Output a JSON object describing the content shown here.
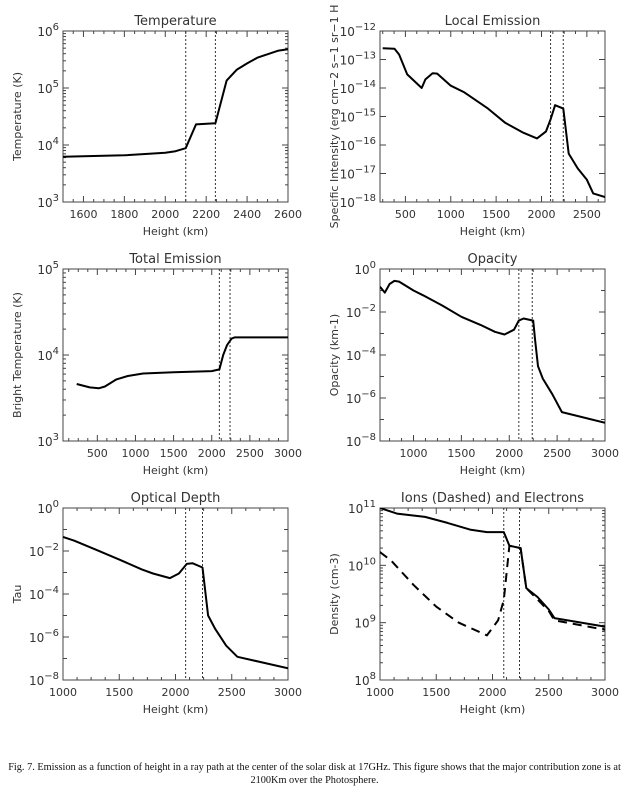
{
  "chart_data": [
    {
      "type": "line",
      "title": "Temperature",
      "xlabel": "Height (km)",
      "ylabel": "Temperature (K)",
      "xlim": [
        1500,
        2600
      ],
      "ylim": [
        1000.0,
        1000000.0
      ],
      "yscale": "log",
      "xticks": [
        1600,
        1800,
        2000,
        2200,
        2400,
        2600
      ],
      "yticks_exponents": [
        3,
        4,
        5,
        6
      ],
      "vertical_dotted_lines": [
        2100,
        2245
      ],
      "series": [
        {
          "style": "solid",
          "x": [
            1500,
            1800,
            2000,
            2050,
            2100,
            2150,
            2245,
            2300,
            2350,
            2400,
            2450,
            2550,
            2600
          ],
          "y": [
            6200.0,
            6600.0,
            7300.0,
            7800.0,
            8800.0,
            23000.0,
            24000.0,
            135000.0,
            210000.0,
            270000.0,
            340000.0,
            450000.0,
            480000.0
          ]
        }
      ]
    },
    {
      "type": "line",
      "title": "Local Emission",
      "xlabel": "Height (km)",
      "ylabel": "Specific Intensity (erg cm−2 s−1 sr−1 H",
      "xlim": [
        220,
        2700
      ],
      "ylim": [
        1e-18,
        1e-12
      ],
      "yscale": "log",
      "xticks": [
        500,
        1000,
        1500,
        2000,
        2500
      ],
      "yticks_exponents": [
        -18,
        -17,
        -16,
        -15,
        -14,
        -13,
        -12
      ],
      "vertical_dotted_lines": [
        2100,
        2240
      ],
      "series": [
        {
          "style": "solid",
          "x": [
            250,
            380,
            430,
            520,
            680,
            720,
            800,
            850,
            1000,
            1150,
            1400,
            1600,
            1800,
            1950,
            2050,
            2100,
            2150,
            2240,
            2300,
            2400,
            2500,
            2570,
            2700
          ],
          "y": [
            2.5e-13,
            2.4e-13,
            1.5e-13,
            3e-14,
            1e-14,
            2e-14,
            3.3e-14,
            3.2e-14,
            1.2e-14,
            7e-15,
            2e-15,
            6e-16,
            2.7e-16,
            1.7e-16,
            3e-16,
            8e-16,
            2.5e-15,
            1.9e-15,
            5e-17,
            1.5e-17,
            6e-18,
            2e-18,
            1.5e-18
          ]
        }
      ]
    },
    {
      "type": "line",
      "title": "Total Emission",
      "xlabel": "Height (km)",
      "ylabel": "Bright Temperature (K)",
      "xlim": [
        50,
        3000
      ],
      "ylim": [
        1000.0,
        100000.0
      ],
      "yscale": "log",
      "xticks": [
        500,
        1000,
        1500,
        2000,
        2500,
        3000
      ],
      "yticks_exponents": [
        3,
        4,
        5
      ],
      "vertical_dotted_lines": [
        2100,
        2240
      ],
      "series": [
        {
          "style": "solid",
          "x": [
            230,
            400,
            520,
            600,
            750,
            900,
            1100,
            1500,
            2000,
            2100,
            2150,
            2200,
            2260,
            2300,
            3000
          ],
          "y": [
            4600.0,
            4200.0,
            4100.0,
            4300.0,
            5200.0,
            5700.0,
            6100.0,
            6300.0,
            6500.0,
            6800.0,
            10000.0,
            13000.0,
            15500.0,
            16000.0,
            16000.0
          ]
        }
      ]
    },
    {
      "type": "line",
      "title": "Opacity",
      "xlabel": "Height (km)",
      "ylabel": "Opacity (km-1)",
      "xlim": [
        650,
        3000
      ],
      "ylim": [
        1e-08,
        1
      ],
      "yscale": "log",
      "xticks": [
        1000,
        1500,
        2000,
        2500,
        3000
      ],
      "yticks_exponents": [
        -8,
        -6,
        -4,
        -2,
        0
      ],
      "vertical_dotted_lines": [
        2100,
        2240
      ],
      "series": [
        {
          "style": "solid",
          "x": [
            650,
            700,
            750,
            800,
            850,
            1000,
            1100,
            1300,
            1500,
            1700,
            1850,
            1950,
            2050,
            2100,
            2150,
            2250,
            2270,
            2300,
            2350,
            2450,
            2550,
            3000
          ],
          "y": [
            0.15,
            0.08,
            0.2,
            0.28,
            0.26,
            0.1,
            0.06,
            0.02,
            0.006,
            0.0025,
            0.0012,
            0.0009,
            0.0015,
            0.004,
            0.005,
            0.004,
            0.0005,
            3e-05,
            8e-06,
            1.5e-06,
            2.2e-07,
            7e-08
          ]
        }
      ]
    },
    {
      "type": "line",
      "title": "Optical Depth",
      "xlabel": "Height (km)",
      "ylabel": "Tau",
      "xlim": [
        1000,
        3000
      ],
      "ylim": [
        1e-08,
        1
      ],
      "yscale": "log",
      "xticks": [
        1000,
        1500,
        2000,
        2500,
        3000
      ],
      "yticks_exponents": [
        -8,
        -6,
        -4,
        -2,
        0
      ],
      "vertical_dotted_lines": [
        2090,
        2240
      ],
      "series": [
        {
          "style": "solid",
          "x": [
            1000,
            1100,
            1300,
            1500,
            1700,
            1800,
            1950,
            2030,
            2100,
            2150,
            2240,
            2290,
            2350,
            2450,
            2550,
            3000
          ],
          "y": [
            0.045,
            0.03,
            0.011,
            0.004,
            0.0014,
            0.0009,
            0.00055,
            0.0009,
            0.0025,
            0.0027,
            0.0017,
            1e-05,
            2.5e-06,
            4e-07,
            1.2e-07,
            3.5e-08
          ]
        }
      ]
    },
    {
      "type": "line",
      "title": "Ions (Dashed) and Electrons",
      "xlabel": "Height (km)",
      "ylabel": "Density (cm-3)",
      "xlim": [
        1000,
        3000
      ],
      "ylim": [
        100000000.0,
        100000000000.0
      ],
      "yscale": "log",
      "xticks": [
        1000,
        1500,
        2000,
        2500,
        3000
      ],
      "yticks_exponents": [
        8,
        9,
        10,
        11
      ],
      "vertical_dotted_lines": [
        2100,
        2240
      ],
      "series": [
        {
          "style": "solid",
          "x": [
            1000,
            1150,
            1400,
            1600,
            1800,
            1950,
            2100,
            2150,
            2250,
            2300,
            2400,
            2500,
            2550,
            3000
          ],
          "y": [
            100000000000.0,
            80000000000.0,
            70000000000.0,
            55000000000.0,
            42000000000.0,
            38000000000.0,
            38000000000.0,
            22000000000.0,
            20000000000.0,
            4000000000.0,
            2800000000.0,
            1700000000.0,
            1200000000.0,
            850000000.0
          ]
        },
        {
          "style": "dashed",
          "x": [
            1000,
            1100,
            1300,
            1500,
            1700,
            1950,
            2050,
            2100,
            2150,
            2250,
            2300,
            2500,
            2550,
            3000
          ],
          "y": [
            17000000000.0,
            12000000000.0,
            4500000000.0,
            1900000000.0,
            1000000000.0,
            600000000.0,
            1100000000.0,
            2500000000.0,
            22000000000.0,
            20000000000.0,
            4000000000.0,
            1600000000.0,
            1100000000.0,
            750000000.0
          ]
        }
      ]
    }
  ],
  "caption": "Fig. 7. Emission as a function of height in a ray path at the center of the solar disk at 17GHz. This figure shows that the major contribution zone is at 2100Km over the Photosphere."
}
